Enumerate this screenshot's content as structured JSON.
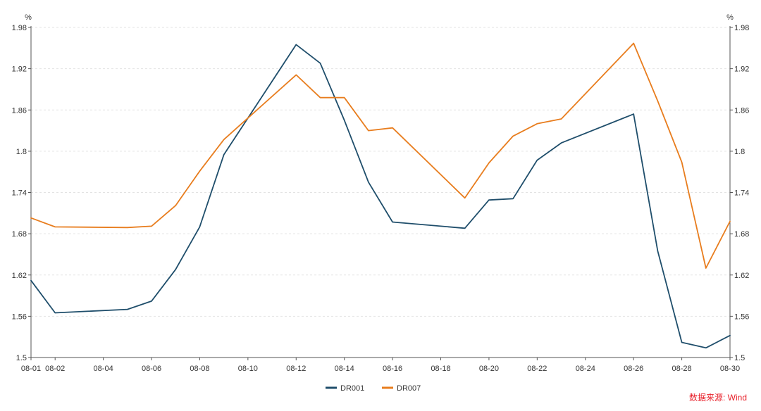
{
  "chart_data": {
    "type": "line",
    "x": [
      "08-01",
      "08-02",
      "08-05",
      "08-06",
      "08-07",
      "08-08",
      "08-09",
      "08-12",
      "08-13",
      "08-14",
      "08-15",
      "08-16",
      "08-19",
      "08-20",
      "08-21",
      "08-22",
      "08-23",
      "08-26",
      "08-27",
      "08-28",
      "08-29",
      "08-30"
    ],
    "x_ticks": [
      "08-01",
      "08-02",
      "08-04",
      "08-06",
      "08-08",
      "08-10",
      "08-12",
      "08-14",
      "08-16",
      "08-18",
      "08-20",
      "08-22",
      "08-24",
      "08-26",
      "08-28",
      "08-30"
    ],
    "series": [
      {
        "name": "DR001",
        "color": "#1f4e6b",
        "values": [
          1.612,
          1.565,
          1.57,
          1.582,
          1.628,
          1.69,
          1.795,
          1.955,
          1.928,
          1.845,
          1.755,
          1.697,
          1.688,
          1.729,
          1.731,
          1.787,
          1.812,
          1.854,
          1.655,
          1.522,
          1.514,
          1.532
        ]
      },
      {
        "name": "DR007",
        "color": "#e87d1e",
        "values": [
          1.703,
          1.69,
          1.689,
          1.691,
          1.721,
          1.771,
          1.817,
          1.911,
          1.878,
          1.878,
          1.83,
          1.834,
          1.732,
          1.783,
          1.822,
          1.84,
          1.847,
          1.957,
          1.873,
          1.784,
          1.63,
          1.698
        ]
      }
    ],
    "y_ticks": [
      "1.5",
      "1.56",
      "1.62",
      "1.68",
      "1.74",
      "1.8",
      "1.86",
      "1.92",
      "1.98"
    ],
    "ylim": [
      1.5,
      1.98
    ],
    "y_unit_left": "%",
    "y_unit_right": "%",
    "legend_position": "bottom-center",
    "grid": true,
    "source": "数据来源: Wind",
    "source_color": "#e8202a"
  }
}
